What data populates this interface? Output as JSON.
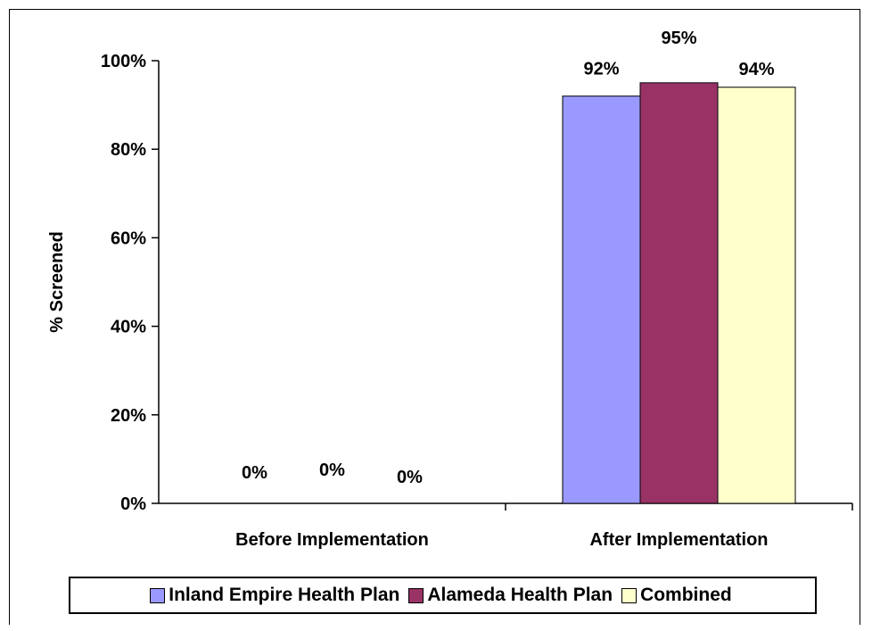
{
  "chart_data": {
    "type": "bar",
    "title": "",
    "xlabel": "",
    "ylabel": "% Screened",
    "categories": [
      "Before Implementation",
      "After Implementation"
    ],
    "series": [
      {
        "name": "Inland Empire Health Plan",
        "values": [
          0,
          92
        ],
        "value_labels": [
          "0%",
          "92%"
        ],
        "color": "#9999ff"
      },
      {
        "name": "Alameda Health Plan",
        "values": [
          0,
          95
        ],
        "value_labels": [
          "0%",
          "95%"
        ],
        "color": "#993366"
      },
      {
        "name": "Combined",
        "values": [
          0,
          94
        ],
        "value_labels": [
          "0%",
          "94%"
        ],
        "color": "#ffffcc"
      }
    ],
    "ylim": [
      0,
      100
    ],
    "yticks": [
      0,
      20,
      40,
      60,
      80,
      100
    ],
    "ytick_labels": [
      "0%",
      "20%",
      "40%",
      "60%",
      "80%",
      "100%"
    ],
    "grid": false,
    "legend_position": "bottom"
  }
}
